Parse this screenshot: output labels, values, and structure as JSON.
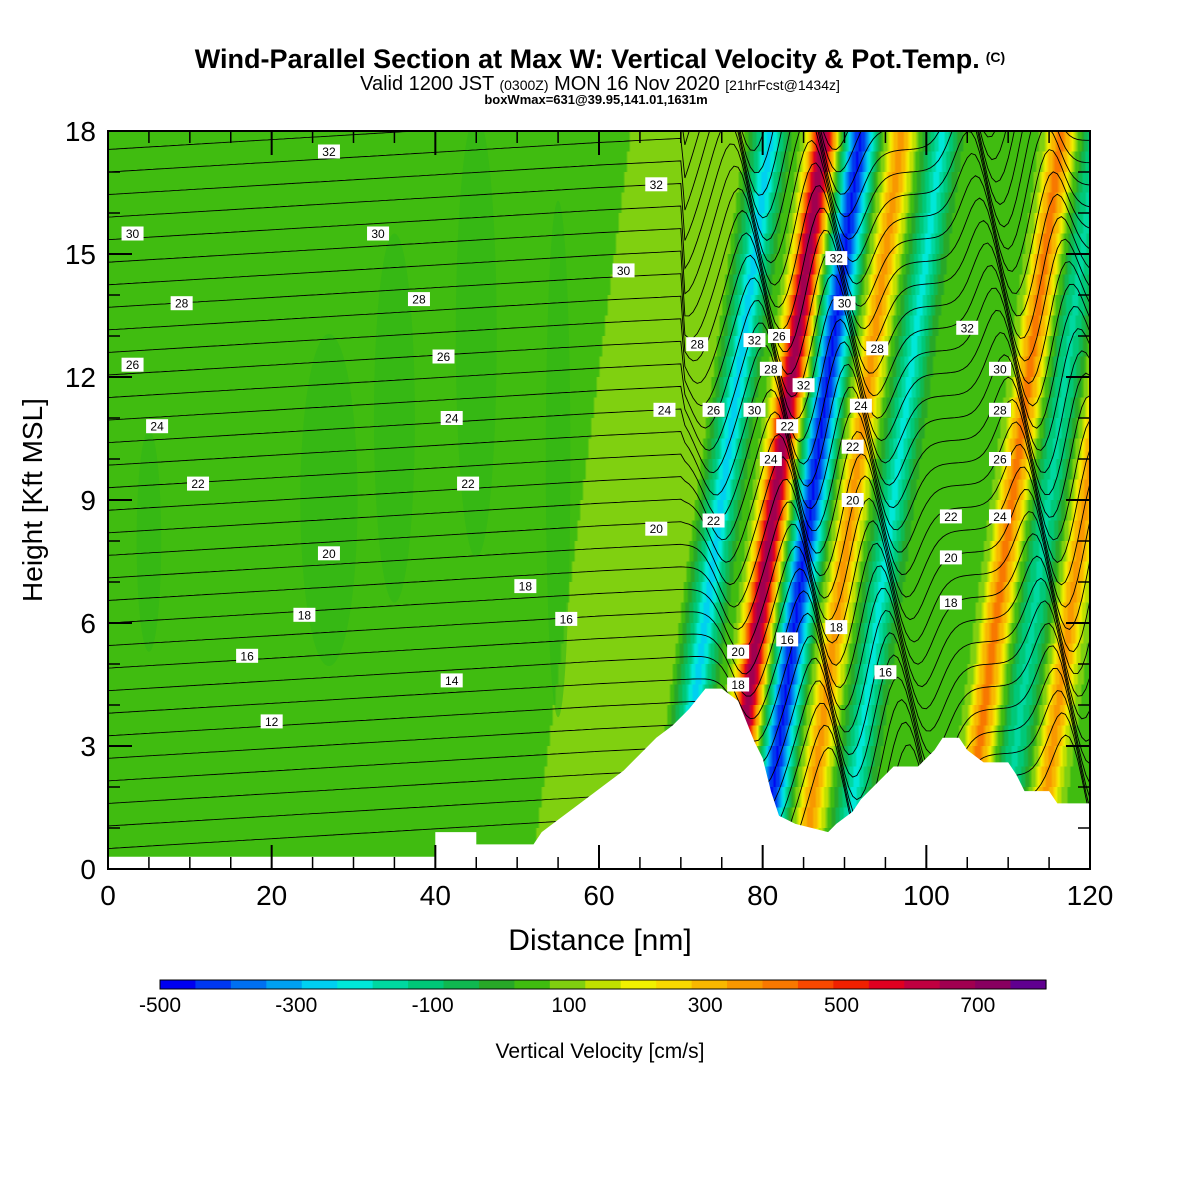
{
  "header": {
    "title": "Wind-Parallel Section at Max W: Vertical Velocity & Pot.Temp.",
    "copyright": "(C)",
    "valid_prefix": "Valid 1200 JST",
    "valid_utc": "(0300Z)",
    "valid_date": "MON 16 Nov 2020",
    "forecast": "[21hrFcst@1434z]",
    "box_info": "boxWmax=631@39.95,141.01,1631m"
  },
  "colorbar": {
    "label": "Vertical Velocity [cm/s]",
    "ticks": [
      "-500",
      "-300",
      "-100",
      "100",
      "300",
      "500",
      "700"
    ],
    "colors": [
      "#0000f0",
      "#0038f0",
      "#0070f0",
      "#00a0f0",
      "#00d0f0",
      "#00e8d8",
      "#00d8a0",
      "#00c878",
      "#10b850",
      "#28a828",
      "#40bc10",
      "#80d010",
      "#c0e000",
      "#f0f000",
      "#f8d800",
      "#f8b800",
      "#f89800",
      "#f87800",
      "#f84800",
      "#f02000",
      "#e00020",
      "#c00040",
      "#a00050",
      "#880060",
      "#600090"
    ]
  },
  "chart_data": {
    "type": "heatmap",
    "title": "Wind-Parallel Section at Max W: Vertical Velocity & Pot.Temp.",
    "xlabel": "Distance [nm]",
    "ylabel": "Height [Kft MSL]",
    "xlim": [
      0,
      120
    ],
    "ylim": [
      0,
      18
    ],
    "xticks": [
      "0",
      "20",
      "40",
      "60",
      "80",
      "100",
      "120"
    ],
    "yticks": [
      "0",
      "3",
      "6",
      "9",
      "12",
      "15",
      "18"
    ],
    "field_range_cm_s": [
      -500,
      800
    ],
    "max_w_cm_s": 631,
    "terrain_kft": [
      [
        0,
        0.3
      ],
      [
        40,
        0.3
      ],
      [
        40,
        0.9
      ],
      [
        45,
        0.9
      ],
      [
        45,
        0.6
      ],
      [
        52,
        0.6
      ],
      [
        53,
        0.9
      ],
      [
        55,
        1.2
      ],
      [
        57,
        1.5
      ],
      [
        59,
        1.8
      ],
      [
        61,
        2.1
      ],
      [
        63,
        2.4
      ],
      [
        65,
        2.8
      ],
      [
        67,
        3.2
      ],
      [
        69,
        3.5
      ],
      [
        71,
        3.9
      ],
      [
        73,
        4.4
      ],
      [
        75,
        4.4
      ],
      [
        77,
        4.1
      ],
      [
        78,
        3.6
      ],
      [
        79,
        3.1
      ],
      [
        80,
        2.7
      ],
      [
        81,
        1.9
      ],
      [
        82,
        1.3
      ],
      [
        84,
        1.1
      ],
      [
        86,
        1.0
      ],
      [
        88,
        0.9
      ],
      [
        89,
        1.1
      ],
      [
        91,
        1.4
      ],
      [
        92,
        1.7
      ],
      [
        94,
        2.1
      ],
      [
        96,
        2.5
      ],
      [
        99,
        2.5
      ],
      [
        101,
        2.9
      ],
      [
        102,
        3.2
      ],
      [
        104,
        3.2
      ],
      [
        105,
        2.9
      ],
      [
        107,
        2.6
      ],
      [
        110,
        2.6
      ],
      [
        111,
        2.3
      ],
      [
        112,
        1.9
      ],
      [
        115,
        1.9
      ],
      [
        116,
        1.6
      ],
      [
        119,
        1.6
      ],
      [
        120,
        1.6
      ]
    ],
    "updraft_bands_nm": [
      {
        "center": 81.5,
        "w_cm_s": 631
      },
      {
        "center": 91,
        "w_cm_s": 300
      },
      {
        "center": 110.5,
        "w_cm_s": 350
      },
      {
        "center": 119.5,
        "w_cm_s": 300
      }
    ],
    "downdraft_bands_nm": [
      {
        "center": 75,
        "w_cm_s": -300
      },
      {
        "center": 86,
        "w_cm_s": -500
      },
      {
        "center": 96,
        "w_cm_s": -250
      },
      {
        "center": 115,
        "w_cm_s": -200
      }
    ],
    "theta_contour_labels": [
      {
        "x": 27,
        "y": 17.5,
        "text": "32"
      },
      {
        "x": 67,
        "y": 16.7,
        "text": "32"
      },
      {
        "x": 3,
        "y": 15.5,
        "text": "30"
      },
      {
        "x": 33,
        "y": 15.5,
        "text": "30"
      },
      {
        "x": 89,
        "y": 14.9,
        "text": "32"
      },
      {
        "x": 63,
        "y": 14.6,
        "text": "30"
      },
      {
        "x": 9,
        "y": 13.8,
        "text": "28"
      },
      {
        "x": 38,
        "y": 13.9,
        "text": "28"
      },
      {
        "x": 90,
        "y": 13.8,
        "text": "30"
      },
      {
        "x": 105,
        "y": 13.2,
        "text": "32"
      },
      {
        "x": 79,
        "y": 12.9,
        "text": "32"
      },
      {
        "x": 82,
        "y": 13.0,
        "text": "26"
      },
      {
        "x": 72,
        "y": 12.8,
        "text": "28"
      },
      {
        "x": 94,
        "y": 12.7,
        "text": "28"
      },
      {
        "x": 3,
        "y": 12.3,
        "text": "26"
      },
      {
        "x": 41,
        "y": 12.5,
        "text": "26"
      },
      {
        "x": 81,
        "y": 12.2,
        "text": "28"
      },
      {
        "x": 109,
        "y": 12.2,
        "text": "30"
      },
      {
        "x": 85,
        "y": 11.8,
        "text": "32"
      },
      {
        "x": 92,
        "y": 11.3,
        "text": "24"
      },
      {
        "x": 68,
        "y": 11.2,
        "text": "24"
      },
      {
        "x": 74,
        "y": 11.2,
        "text": "26"
      },
      {
        "x": 79,
        "y": 11.2,
        "text": "30"
      },
      {
        "x": 109,
        "y": 11.2,
        "text": "28"
      },
      {
        "x": 42,
        "y": 11.0,
        "text": "24"
      },
      {
        "x": 83,
        "y": 10.8,
        "text": "22"
      },
      {
        "x": 6,
        "y": 10.8,
        "text": "24"
      },
      {
        "x": 91,
        "y": 10.3,
        "text": "22"
      },
      {
        "x": 81,
        "y": 10.0,
        "text": "24"
      },
      {
        "x": 109,
        "y": 10.0,
        "text": "26"
      },
      {
        "x": 11,
        "y": 9.4,
        "text": "22"
      },
      {
        "x": 44,
        "y": 9.4,
        "text": "22"
      },
      {
        "x": 91,
        "y": 9.0,
        "text": "20"
      },
      {
        "x": 103,
        "y": 8.6,
        "text": "22"
      },
      {
        "x": 109,
        "y": 8.6,
        "text": "24"
      },
      {
        "x": 74,
        "y": 8.5,
        "text": "22"
      },
      {
        "x": 67,
        "y": 8.3,
        "text": "20"
      },
      {
        "x": 27,
        "y": 7.7,
        "text": "20"
      },
      {
        "x": 103,
        "y": 7.6,
        "text": "20"
      },
      {
        "x": 51,
        "y": 6.9,
        "text": "18"
      },
      {
        "x": 103,
        "y": 6.5,
        "text": "18"
      },
      {
        "x": 24,
        "y": 6.2,
        "text": "18"
      },
      {
        "x": 56,
        "y": 6.1,
        "text": "16"
      },
      {
        "x": 89,
        "y": 5.9,
        "text": "18"
      },
      {
        "x": 83,
        "y": 5.6,
        "text": "16"
      },
      {
        "x": 77,
        "y": 5.3,
        "text": "20"
      },
      {
        "x": 17,
        "y": 5.2,
        "text": "16"
      },
      {
        "x": 95,
        "y": 4.8,
        "text": "16"
      },
      {
        "x": 42,
        "y": 4.6,
        "text": "14"
      },
      {
        "x": 77,
        "y": 4.5,
        "text": "18"
      },
      {
        "x": 20,
        "y": 3.6,
        "text": "12"
      }
    ]
  }
}
